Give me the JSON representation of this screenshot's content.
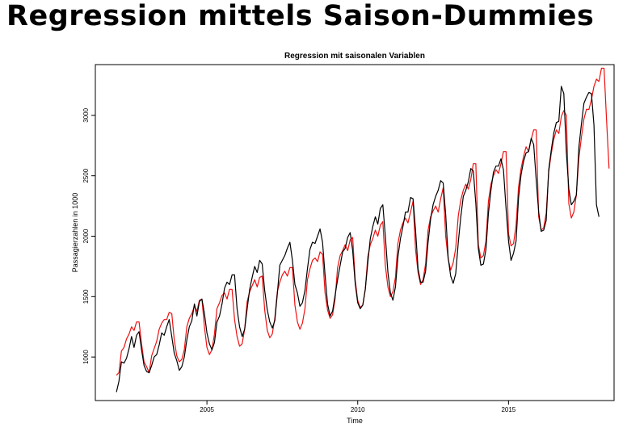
{
  "slide": {
    "title": "Regression mittels Saison-Dummies"
  },
  "chart_data": {
    "type": "line",
    "title": "Regression mit saisonalen Variablen",
    "xlabel": "Time",
    "ylabel": "Passagierzahlen in 1000",
    "xlim": [
      2001.3,
      2018.5
    ],
    "ylim": [
      640,
      3420
    ],
    "x_ticks": [
      2005,
      2010,
      2015
    ],
    "y_ticks": [
      1000,
      1500,
      2000,
      2500,
      3000
    ],
    "grid": false,
    "legend": "none",
    "colors": {
      "observed": "#000000",
      "fitted": "#ee1111"
    },
    "start": 2002.0,
    "series": [
      {
        "values": [
          710,
          800,
          960,
          950,
          990,
          1070,
          1170,
          1080,
          1180,
          1210,
          1060,
          930,
          880,
          870,
          930,
          1000,
          1020,
          1100,
          1200,
          1180,
          1250,
          1310,
          1170,
          1030,
          970,
          890,
          920,
          1000,
          1140,
          1250,
          1300,
          1440,
          1340,
          1460,
          1480,
          1360,
          1200,
          1110,
          1060,
          1120,
          1290,
          1340,
          1440,
          1570,
          1620,
          1600,
          1680,
          1680,
          1400,
          1250,
          1170,
          1230,
          1400,
          1560,
          1660,
          1750,
          1700,
          1800,
          1770,
          1550,
          1390,
          1290,
          1240,
          1300,
          1520,
          1760,
          1800,
          1840,
          1900,
          1950,
          1800,
          1600,
          1530,
          1420,
          1450,
          1550,
          1730,
          1890,
          1950,
          1940,
          2000,
          2060,
          1950,
          1680,
          1440,
          1340,
          1380,
          1510,
          1640,
          1760,
          1870,
          1900,
          1990,
          2030,
          1880,
          1610,
          1450,
          1400,
          1430,
          1560,
          1780,
          1980,
          2080,
          2160,
          2100,
          2230,
          2260,
          2000,
          1700,
          1530,
          1470,
          1580,
          1830,
          1980,
          2080,
          2200,
          2200,
          2320,
          2310,
          2050,
          1730,
          1620,
          1620,
          1710,
          1950,
          2140,
          2260,
          2330,
          2380,
          2460,
          2440,
          2180,
          1820,
          1670,
          1610,
          1690,
          1950,
          2160,
          2330,
          2380,
          2450,
          2560,
          2540,
          2270,
          1900,
          1760,
          1770,
          1890,
          2190,
          2380,
          2530,
          2580,
          2580,
          2640,
          2550,
          2230,
          1960,
          1800,
          1860,
          1960,
          2320,
          2510,
          2620,
          2690,
          2700,
          2810,
          2760,
          2470,
          2200,
          2040,
          2050,
          2130,
          2550,
          2710,
          2850,
          2940,
          2950,
          3240,
          3180,
          2700,
          2390,
          2260,
          2290,
          2340,
          2740,
          2930,
          3100,
          3150,
          3190,
          3180,
          2920,
          2260,
          2160
        ]
      },
      {
        "values": [
          850,
          870,
          1050,
          1080,
          1150,
          1190,
          1250,
          1220,
          1290,
          1290,
          1110,
          960,
          920,
          870,
          1010,
          1070,
          1130,
          1230,
          1280,
          1310,
          1310,
          1370,
          1360,
          1140,
          1010,
          960,
          980,
          1060,
          1250,
          1320,
          1360,
          1420,
          1380,
          1470,
          1480,
          1250,
          1080,
          1020,
          1060,
          1190,
          1400,
          1450,
          1510,
          1530,
          1480,
          1560,
          1560,
          1310,
          1170,
          1090,
          1110,
          1230,
          1460,
          1540,
          1590,
          1640,
          1580,
          1660,
          1670,
          1390,
          1220,
          1160,
          1190,
          1320,
          1540,
          1620,
          1680,
          1710,
          1670,
          1740,
          1740,
          1430,
          1290,
          1230,
          1280,
          1400,
          1640,
          1730,
          1800,
          1820,
          1790,
          1870,
          1850,
          1530,
          1390,
          1320,
          1350,
          1480,
          1740,
          1840,
          1880,
          1930,
          1880,
          1970,
          1990,
          1640,
          1470,
          1410,
          1430,
          1560,
          1830,
          1930,
          1980,
          2050,
          2000,
          2090,
          2120,
          1760,
          1580,
          1500,
          1540,
          1660,
          1940,
          2050,
          2110,
          2150,
          2110,
          2200,
          2290,
          1890,
          1700,
          1600,
          1640,
          1770,
          2050,
          2160,
          2210,
          2250,
          2200,
          2310,
          2400,
          2000,
          1810,
          1720,
          1780,
          1900,
          2170,
          2300,
          2380,
          2430,
          2390,
          2470,
          2600,
          2600,
          1930,
          1820,
          1840,
          1960,
          2290,
          2430,
          2500,
          2550,
          2520,
          2600,
          2700,
          2700,
          2020,
          1920,
          1940,
          2090,
          2410,
          2560,
          2660,
          2740,
          2700,
          2800,
          2880,
          2880,
          2160,
          2050,
          2070,
          2190,
          2530,
          2680,
          2800,
          2880,
          2850,
          2990,
          3040,
          3000,
          2270,
          2150,
          2200,
          2340,
          2650,
          2820,
          2970,
          3050,
          3050,
          3130,
          3240,
          3300,
          3280,
          3390,
          3390,
          2960,
          2560
        ]
      }
    ]
  }
}
